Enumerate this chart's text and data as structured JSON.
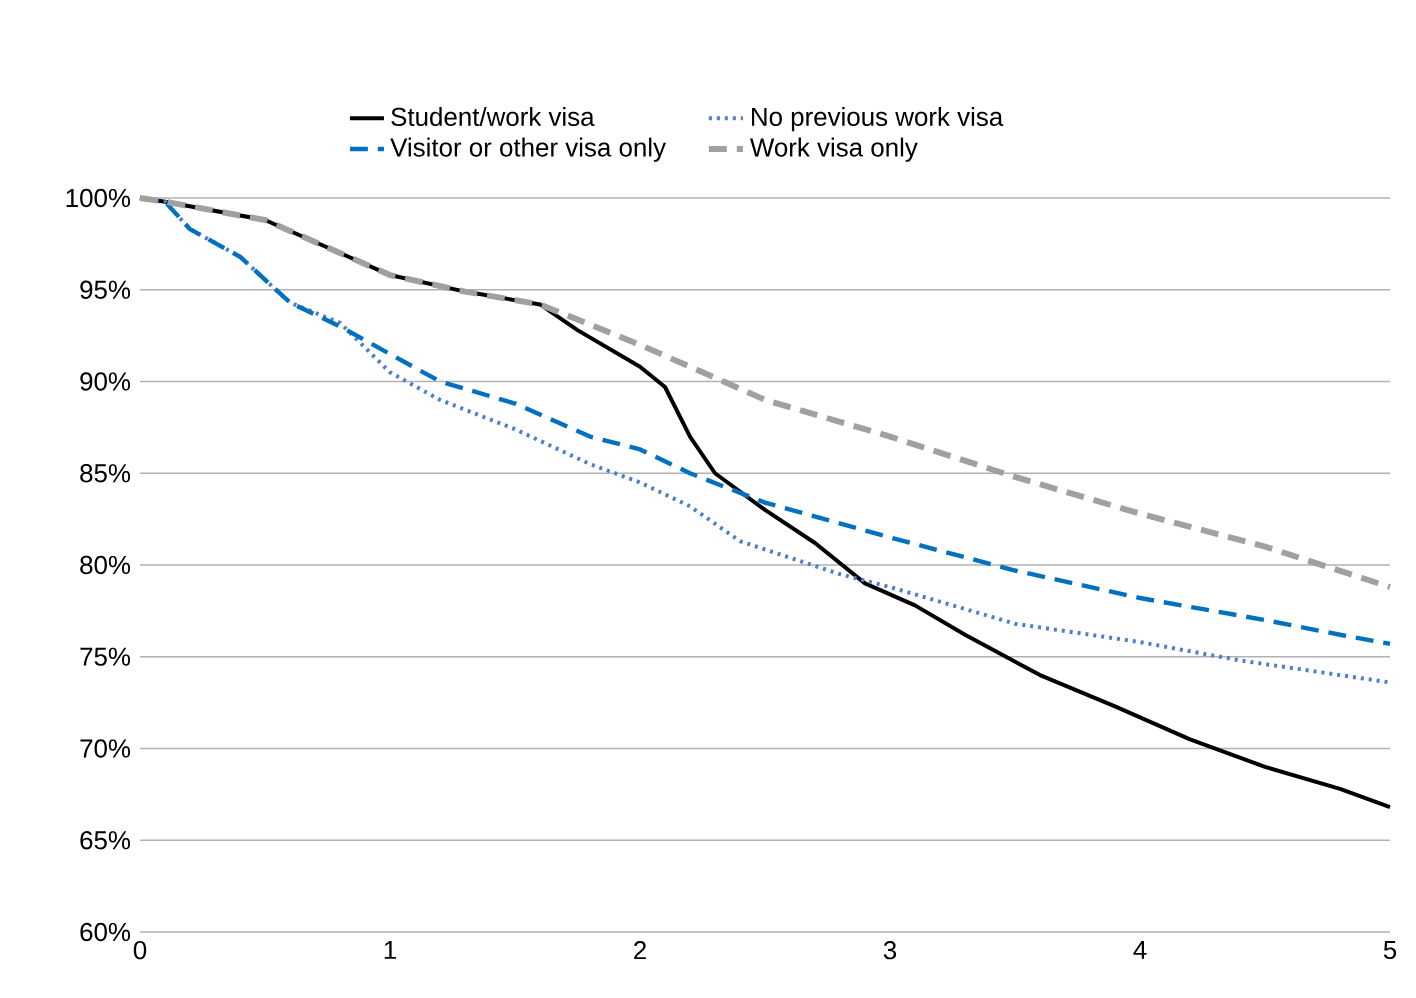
{
  "chart_data": {
    "type": "line",
    "xlim": [
      0,
      5
    ],
    "ylim": [
      60,
      100
    ],
    "xticks": [
      0,
      1,
      2,
      3,
      4,
      5
    ],
    "yticks": [
      {
        "value": 60,
        "label": "60%"
      },
      {
        "value": 65,
        "label": "65%"
      },
      {
        "value": 70,
        "label": "70%"
      },
      {
        "value": 75,
        "label": "75%"
      },
      {
        "value": 80,
        "label": "80%"
      },
      {
        "value": 85,
        "label": "85%"
      },
      {
        "value": 90,
        "label": "90%"
      },
      {
        "value": 95,
        "label": "95%"
      },
      {
        "value": 100,
        "label": "100%"
      }
    ],
    "grid": "y",
    "legend": "top",
    "marker": "none",
    "series": [
      {
        "name": "Student/work visa",
        "color": "#000000",
        "line_style": "solid",
        "x": [
          0,
          0.1,
          0.5,
          0.8,
          1,
          1.3,
          1.6,
          1.75,
          2,
          2.1,
          2.2,
          2.3,
          2.5,
          2.7,
          2.9,
          3.1,
          3.3,
          3.6,
          3.9,
          4.2,
          4.5,
          4.8,
          5
        ],
        "values": [
          100,
          99.8,
          98.8,
          97,
          95.8,
          94.9,
          94.2,
          92.8,
          90.8,
          89.7,
          87,
          85,
          83,
          81.2,
          79,
          77.8,
          76.2,
          74,
          72.3,
          70.5,
          69,
          67.8,
          66.8
        ]
      },
      {
        "name": "No previous work visa",
        "color": "#4a7fcc",
        "line_style": "dotted",
        "x": [
          0,
          0.1,
          0.2,
          0.4,
          0.6,
          0.8,
          1,
          1.2,
          1.5,
          1.8,
          2,
          2.2,
          2.4,
          2.8,
          3,
          3.5,
          4,
          4.4,
          5
        ],
        "values": [
          100,
          99.8,
          98.3,
          96.8,
          94.3,
          93.2,
          90.5,
          89,
          87.4,
          85.5,
          84.5,
          83.2,
          81.3,
          79.5,
          78.8,
          76.8,
          75.8,
          74.8,
          73.6
        ]
      },
      {
        "name": "Visitor or other visa only",
        "color": "#0070c0",
        "line_style": "dashed",
        "x": [
          0,
          0.1,
          0.2,
          0.4,
          0.6,
          0.8,
          1,
          1.2,
          1.5,
          1.8,
          2,
          2.2,
          2.5,
          3,
          3.5,
          4,
          4.5,
          4.8,
          5
        ],
        "values": [
          100,
          99.8,
          98.3,
          96.8,
          94.3,
          93,
          91.5,
          90,
          88.8,
          87,
          86.3,
          85,
          83.4,
          81.5,
          79.7,
          78.2,
          77,
          76.2,
          75.7
        ]
      },
      {
        "name": "Work visa only",
        "color": "#a0a0a0",
        "line_style": "dashed",
        "x": [
          0,
          0.1,
          0.5,
          0.8,
          1,
          1.3,
          1.6,
          2,
          2.5,
          3,
          3.5,
          4,
          4.5,
          5
        ],
        "values": [
          100,
          99.8,
          98.8,
          97,
          95.8,
          94.9,
          94.2,
          92,
          89,
          87,
          84.8,
          82.8,
          81,
          78.8
        ]
      }
    ]
  }
}
